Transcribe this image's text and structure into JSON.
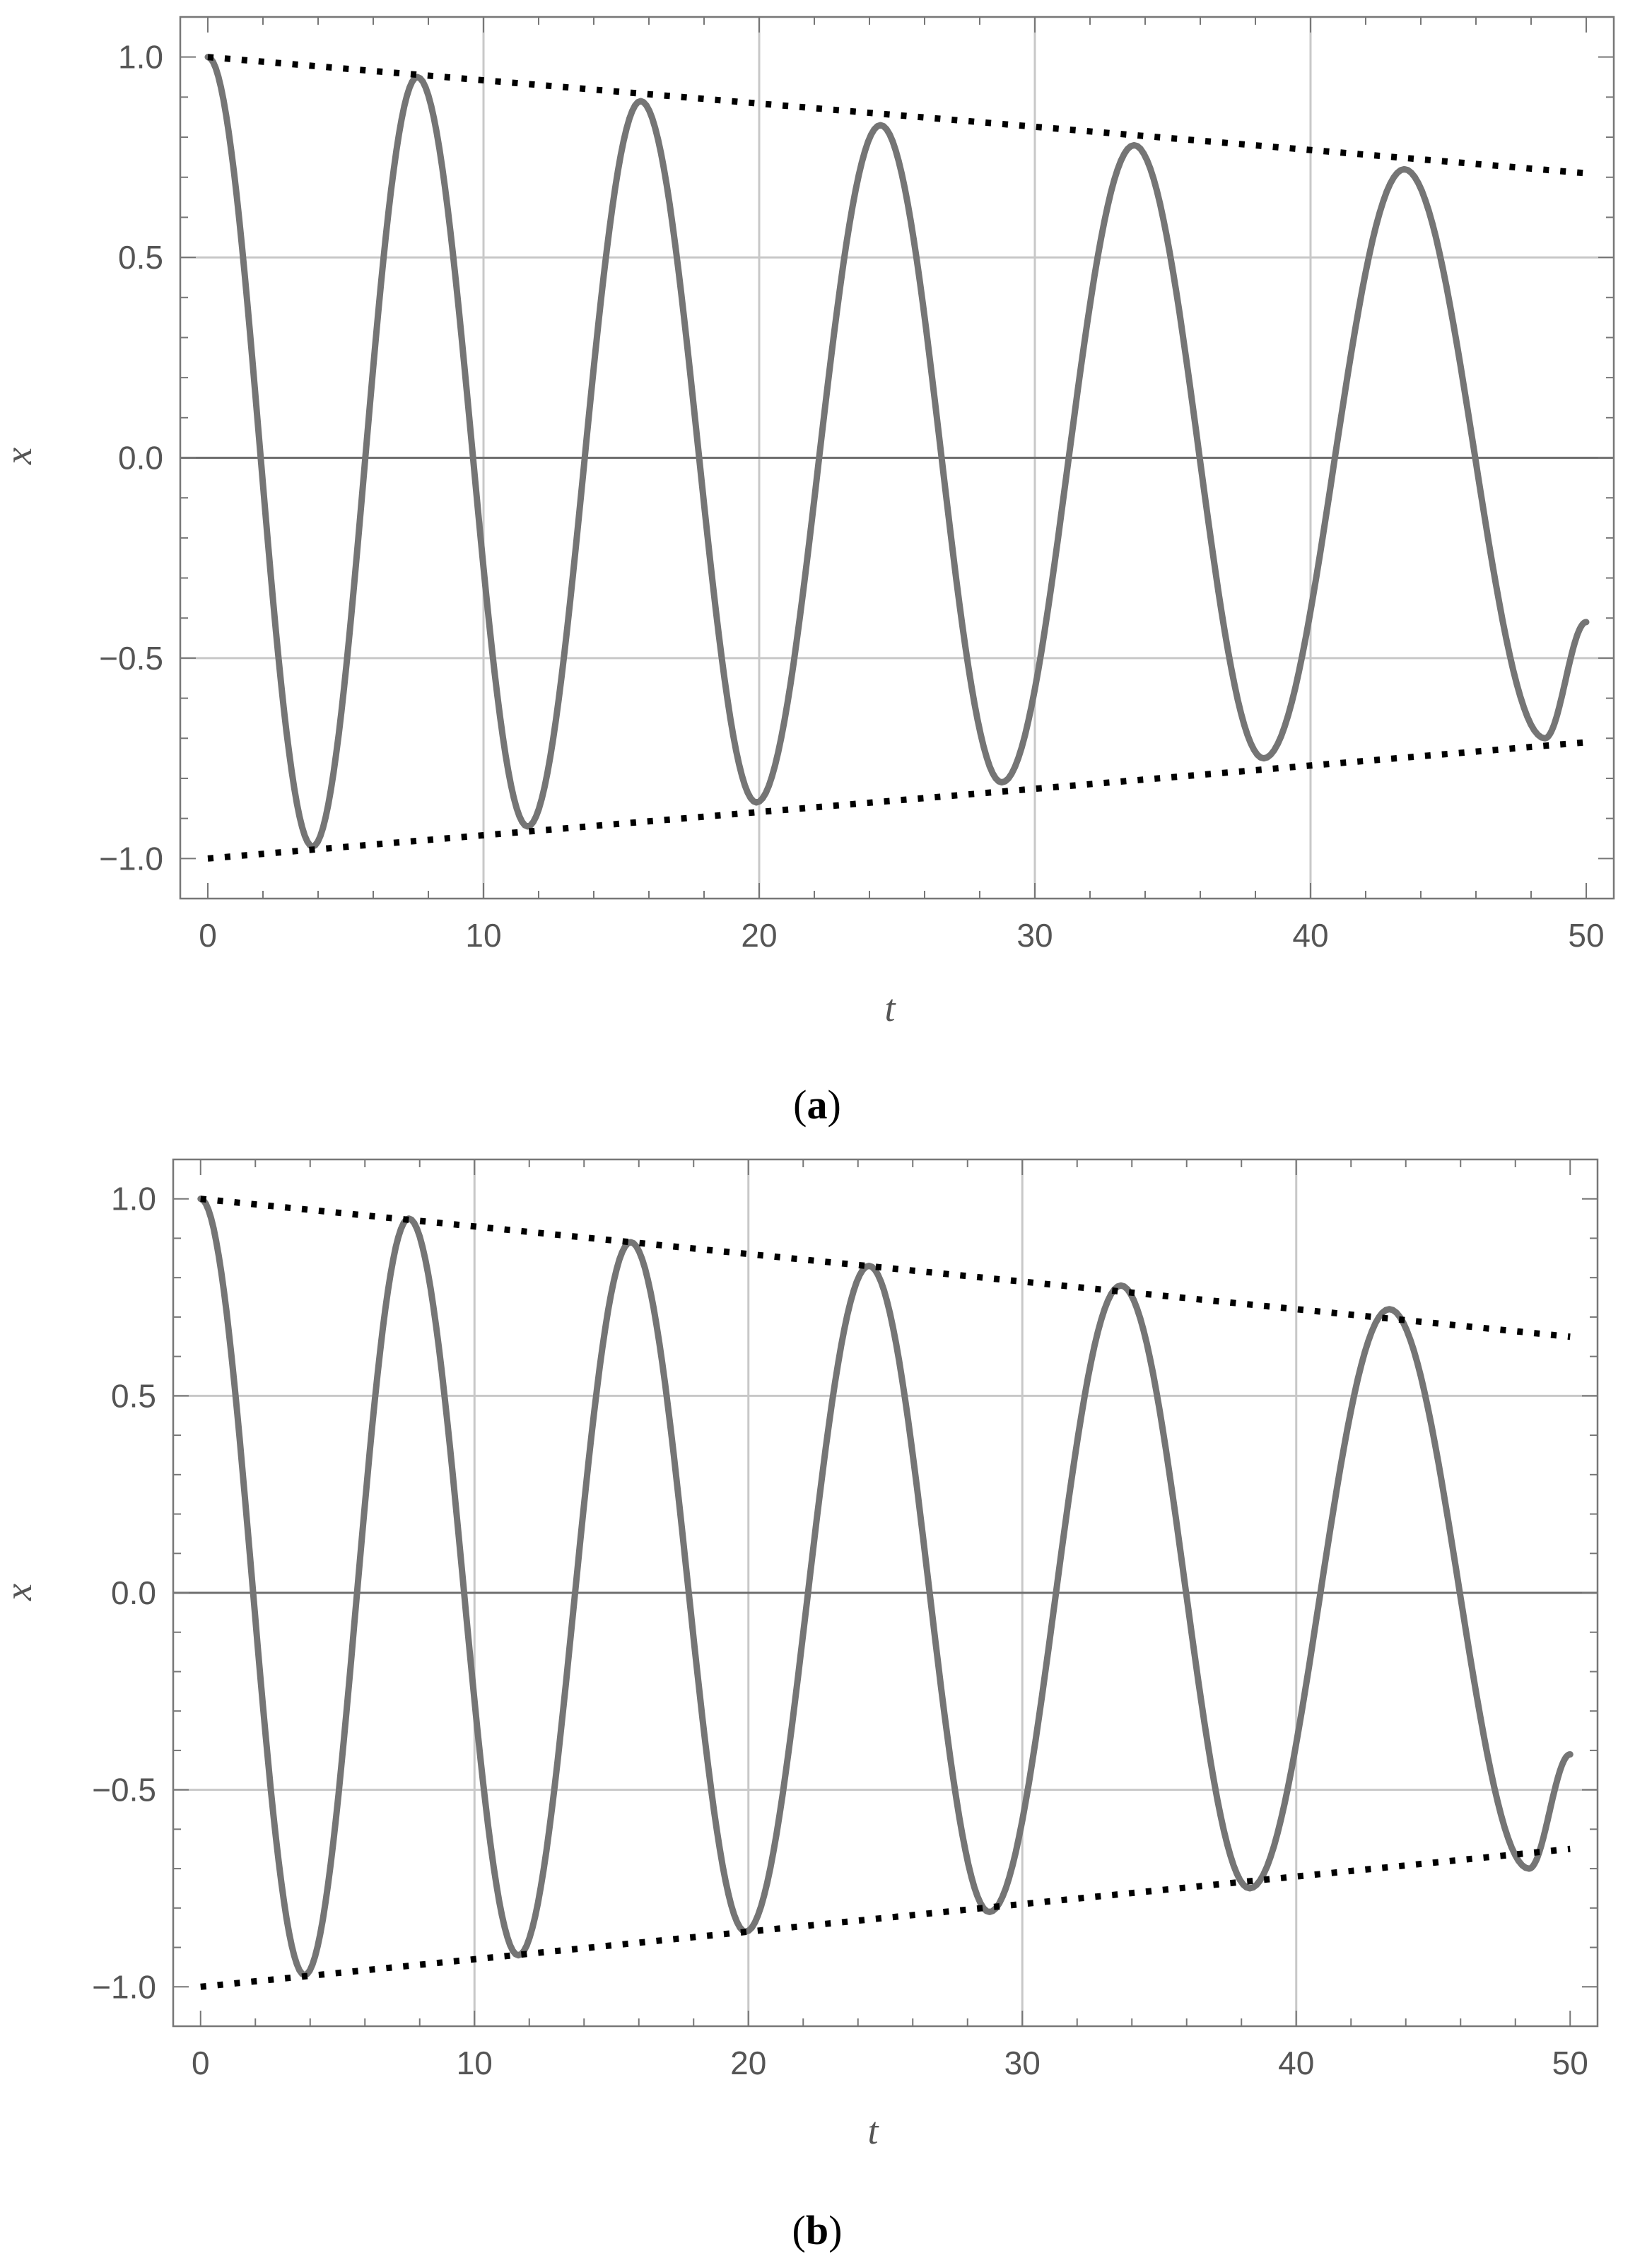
{
  "chart_data": [
    {
      "type": "line",
      "caption": "a",
      "xlabel": "t",
      "ylabel": "x",
      "xlim": [
        -1,
        51
      ],
      "ylim": [
        -1.1,
        1.1
      ],
      "xticks": [
        0,
        10,
        20,
        30,
        40,
        50
      ],
      "yticks": [
        -1.0,
        -0.5,
        0.0,
        0.5,
        1.0
      ],
      "xtick_labels": [
        "0",
        "10",
        "20",
        "30",
        "40",
        "50"
      ],
      "ytick_labels": [
        "−1.0",
        "−0.5",
        "0.0",
        "0.5",
        "1.0"
      ],
      "grid": true,
      "colors": {
        "curve": "#757575",
        "envelope": "#000000",
        "grid": "#c8c8c8",
        "zero": "#6e6e6e"
      },
      "series": [
        {
          "style": "solid",
          "x": [
            0,
            3.8,
            7.6,
            11.6,
            15.7,
            19.9,
            24.4,
            28.8,
            33.6,
            38.3,
            43.4,
            48.5,
            50
          ],
          "y": [
            1.0,
            -0.97,
            0.95,
            -0.92,
            0.89,
            -0.86,
            0.83,
            -0.81,
            0.78,
            -0.75,
            0.72,
            -0.7,
            -0.41
          ]
        },
        {
          "style": "dotted",
          "x": [
            0,
            50
          ],
          "y": [
            1.0,
            0.71
          ]
        },
        {
          "style": "dotted",
          "x": [
            0,
            50
          ],
          "y": [
            -1.0,
            -0.71
          ]
        }
      ]
    },
    {
      "type": "line",
      "caption": "b",
      "xlabel": "t",
      "ylabel": "x",
      "xlim": [
        -1,
        51
      ],
      "ylim": [
        -1.1,
        1.1
      ],
      "xticks": [
        0,
        10,
        20,
        30,
        40,
        50
      ],
      "yticks": [
        -1.0,
        -0.5,
        0.0,
        0.5,
        1.0
      ],
      "xtick_labels": [
        "0",
        "10",
        "20",
        "30",
        "40",
        "50"
      ],
      "ytick_labels": [
        "−1.0",
        "−0.5",
        "0.0",
        "0.5",
        "1.0"
      ],
      "grid": true,
      "colors": {
        "curve": "#757575",
        "envelope": "#000000",
        "grid": "#c8c8c8",
        "zero": "#6e6e6e"
      },
      "series": [
        {
          "style": "solid",
          "x": [
            0,
            3.8,
            7.6,
            11.6,
            15.7,
            19.9,
            24.4,
            28.8,
            33.6,
            38.3,
            43.4,
            48.5,
            50
          ],
          "y": [
            1.0,
            -0.97,
            0.95,
            -0.92,
            0.89,
            -0.86,
            0.83,
            -0.81,
            0.78,
            -0.75,
            0.72,
            -0.7,
            -0.41
          ]
        },
        {
          "style": "dotted",
          "x": [
            0,
            50
          ],
          "y": [
            1.0,
            0.65
          ]
        },
        {
          "style": "dotted",
          "x": [
            0,
            50
          ],
          "y": [
            -1.0,
            -0.65
          ]
        }
      ]
    }
  ]
}
